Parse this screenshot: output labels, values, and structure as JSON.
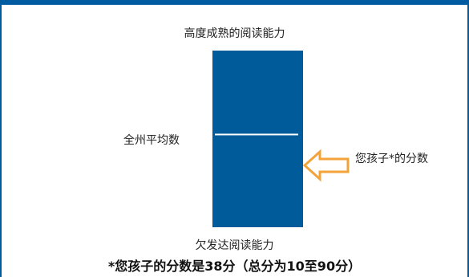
{
  "chart_data": {
    "type": "bar",
    "title": "",
    "scale_top_label": "高度成熟的阅读能力",
    "scale_bottom_label": "欠发达阅读能力",
    "state_average_label": "全州平均数",
    "child_score_label": "您孩子*的分数",
    "caption": "*您孩子的分数是38分（总分为10至90分）",
    "score_range": [
      10,
      90
    ],
    "child_score": 38,
    "state_average": 52,
    "colors": {
      "bar": "#005b9a",
      "arrow": "#f2a33a",
      "frame": "#005ba0"
    }
  }
}
